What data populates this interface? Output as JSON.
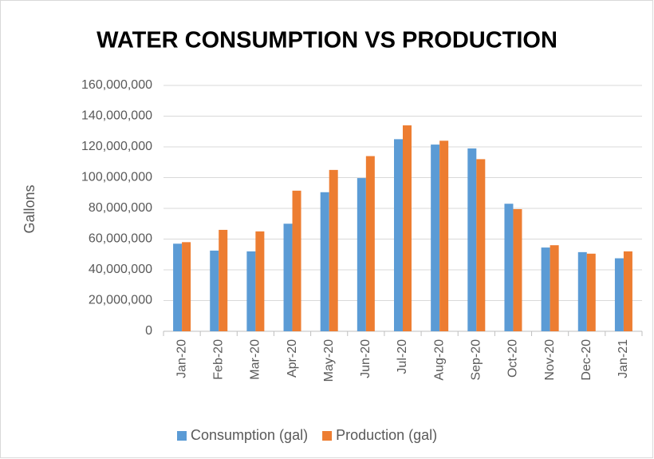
{
  "chart_data": {
    "type": "bar",
    "title": "WATER CONSUMPTION VS PRODUCTION",
    "y_label": "Gallons",
    "categories": [
      "Jan-20",
      "Feb-20",
      "Mar-20",
      "Apr-20",
      "May-20",
      "Jun-20",
      "Jul-20",
      "Aug-20",
      "Sep-20",
      "Oct-20",
      "Nov-20",
      "Dec-20",
      "Jan-21"
    ],
    "series": [
      {
        "name": "Consumption (gal)",
        "color": "#5b9bd5",
        "values": [
          57000000,
          52500000,
          52000000,
          70000000,
          90500000,
          99700000,
          125000000,
          121500000,
          119000000,
          83000000,
          54500000,
          51500000,
          47500000
        ]
      },
      {
        "name": "Production (gal)",
        "color": "#ed7d31",
        "values": [
          58000000,
          66000000,
          65000000,
          91500000,
          105000000,
          114000000,
          134000000,
          124000000,
          112000000,
          79500000,
          56000000,
          50500000,
          52000000
        ]
      }
    ],
    "ylim": [
      0,
      160000000
    ],
    "yticks": [
      0,
      {
        "value": 20000000,
        "label": "20,000,000"
      },
      {
        "value": 40000000,
        "label": "40,000,000"
      },
      {
        "value": 60000000,
        "label": "60,000,000"
      },
      {
        "value": 80000000,
        "label": "80,000,000"
      },
      {
        "value": 100000000,
        "label": "100,000,000"
      },
      {
        "value": 120000000,
        "label": "120,000,000"
      },
      {
        "value": 140000000,
        "label": "140,000,000"
      },
      {
        "value": 160000000,
        "label": "160,000,000"
      }
    ],
    "grid": true,
    "legend": "bottom"
  }
}
